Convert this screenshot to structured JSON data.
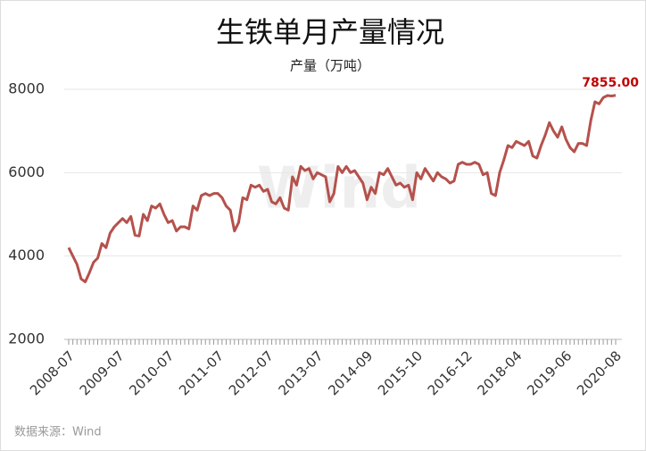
{
  "chart_data": {
    "type": "line",
    "title": "生铁单月产量情况",
    "subtitle": "产量（万吨）",
    "source": "数据来源：Wind",
    "watermark": "Wind",
    "categories": [
      "2008-07",
      null,
      null,
      null,
      null,
      null,
      null,
      null,
      null,
      null,
      null,
      null,
      "2009-07",
      null,
      null,
      null,
      null,
      null,
      null,
      null,
      null,
      null,
      null,
      null,
      "2010-07",
      null,
      null,
      null,
      null,
      null,
      null,
      null,
      null,
      null,
      null,
      null,
      "2011-07",
      null,
      null,
      null,
      null,
      null,
      null,
      null,
      null,
      null,
      null,
      null,
      "2012-07",
      null,
      null,
      null,
      null,
      null,
      null,
      null,
      null,
      null,
      null,
      null,
      "2013-07",
      null,
      null,
      null,
      null,
      null,
      null,
      null,
      null,
      null,
      null,
      null,
      "2014-09",
      null,
      null,
      null,
      null,
      null,
      null,
      null,
      null,
      null,
      null,
      null,
      "2015-10",
      null,
      null,
      null,
      null,
      null,
      null,
      null,
      null,
      null,
      null,
      null,
      "2016-12",
      null,
      null,
      null,
      null,
      null,
      null,
      null,
      null,
      null,
      null,
      null,
      "2018-04",
      null,
      null,
      null,
      null,
      null,
      null,
      null,
      null,
      null,
      null,
      null,
      "2019-06",
      null,
      null,
      null,
      null,
      null,
      null,
      null,
      null,
      null,
      null,
      null,
      "2020-08"
    ],
    "series": [
      {
        "name": "生铁单月产量",
        "color": "#b5514c",
        "values": [
          4200,
          4000,
          3800,
          3450,
          3380,
          3600,
          3850,
          3950,
          4300,
          4200,
          4550,
          4700,
          4800,
          4900,
          4800,
          4950,
          4500,
          4480,
          5000,
          4850,
          5200,
          5150,
          5250,
          5000,
          4800,
          4850,
          4600,
          4700,
          4700,
          4650,
          5200,
          5100,
          5450,
          5500,
          5450,
          5500,
          5500,
          5400,
          5200,
          5100,
          4600,
          4800,
          5400,
          5350,
          5700,
          5650,
          5700,
          5550,
          5600,
          5300,
          5250,
          5400,
          5150,
          5100,
          5900,
          5700,
          6150,
          6050,
          6100,
          5850,
          6000,
          5950,
          5900,
          5300,
          5500,
          6150,
          6000,
          6150,
          6000,
          6050,
          5900,
          5750,
          5350,
          5650,
          5500,
          6000,
          5950,
          6100,
          5900,
          5700,
          5750,
          5650,
          5700,
          5350,
          6000,
          5850,
          6100,
          5950,
          5800,
          6000,
          5900,
          5850,
          5750,
          5800,
          6200,
          6250,
          6200,
          6200,
          6250,
          6200,
          5950,
          6000,
          5500,
          5450,
          6000,
          6300,
          6650,
          6600,
          6750,
          6700,
          6650,
          6750,
          6400,
          6350,
          6650,
          6900,
          7200,
          7000,
          6850,
          7100,
          6800,
          6600,
          6500,
          6700,
          6700,
          6650,
          7250,
          7700,
          7650,
          7800,
          7850,
          7840,
          7855
        ],
        "value_labels": [
          null,
          null,
          null,
          null,
          null,
          null,
          null,
          null,
          null,
          null,
          null,
          null,
          null,
          null,
          null,
          null,
          null,
          null,
          null,
          null,
          null,
          null,
          null,
          null,
          null,
          null,
          null,
          null,
          null,
          null,
          null,
          null,
          null,
          null,
          null,
          null,
          null,
          null,
          null,
          null,
          null,
          null,
          null,
          null,
          null,
          null,
          null,
          null,
          null,
          null,
          null,
          null,
          null,
          null,
          null,
          null,
          null,
          null,
          null,
          null,
          null,
          null,
          null,
          null,
          null,
          null,
          null,
          null,
          null,
          null,
          null,
          null,
          null,
          null,
          null,
          null,
          null,
          null,
          null,
          null,
          null,
          null,
          null,
          null,
          null,
          null,
          null,
          null,
          null,
          null,
          null,
          null,
          null,
          null,
          null,
          null,
          null,
          null,
          null,
          null,
          null,
          null,
          null,
          null,
          null,
          null,
          null,
          null,
          null,
          null,
          null,
          null,
          null,
          null,
          null,
          null,
          null,
          null,
          null,
          null,
          null,
          null,
          null,
          null,
          null,
          null,
          null,
          null,
          null,
          null,
          null,
          null,
          "7855.00"
        ],
        "label_color": "#c00000"
      }
    ],
    "ylim": [
      2000,
      8000
    ],
    "yticks": [
      2000,
      4000,
      6000,
      8000
    ],
    "grid": true
  }
}
